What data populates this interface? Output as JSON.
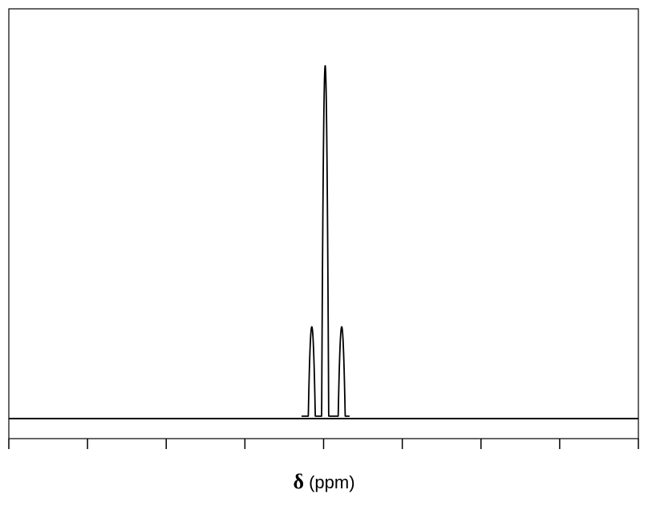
{
  "chart_data": {
    "type": "line",
    "title": "",
    "xlabel_symbol": "δ",
    "xlabel_unit": " (ppm)",
    "xlim": [
      0,
      8
    ],
    "ylim": [
      0,
      1
    ],
    "x_ticks": [
      0,
      1,
      2,
      3,
      4,
      5,
      6,
      7,
      8
    ],
    "tick_labels_shown": false,
    "grid": false,
    "legend": "none",
    "line_color": "#000000",
    "peaks": [
      {
        "center": 3.85,
        "height": 0.26
      },
      {
        "center": 4.02,
        "height": 1.0
      },
      {
        "center": 4.23,
        "height": 0.26
      }
    ]
  }
}
